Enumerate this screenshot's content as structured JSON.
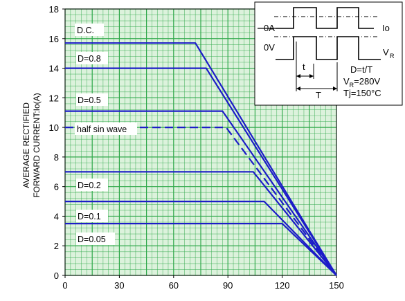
{
  "chart_data": {
    "type": "line",
    "title": "",
    "xlabel": "",
    "ylabel_lines": [
      "AVERAGE RECTIFIED",
      "FORWARD CURRENT:Io(A)"
    ],
    "xlim": [
      0,
      150
    ],
    "ylim": [
      0,
      18
    ],
    "xticks": [
      0,
      30,
      60,
      90,
      120,
      150
    ],
    "yticks": [
      0,
      2,
      4,
      6,
      8,
      10,
      12,
      14,
      16,
      18
    ],
    "grid": true,
    "colors": {
      "series": "#1c1cc8",
      "grid": "#2fa84a",
      "background": "#dcf2dc"
    },
    "series": [
      {
        "name": "D.C.",
        "style": "solid",
        "points": [
          [
            0,
            15.7
          ],
          [
            72,
            15.7
          ],
          [
            150,
            0
          ]
        ]
      },
      {
        "name": "D=0.8",
        "style": "solid",
        "points": [
          [
            0,
            14.0
          ],
          [
            78,
            14.0
          ],
          [
            150,
            0
          ]
        ]
      },
      {
        "name": "D=0.5",
        "style": "solid",
        "points": [
          [
            0,
            11.1
          ],
          [
            87,
            11.1
          ],
          [
            150,
            0
          ]
        ]
      },
      {
        "name": "half sin wave",
        "style": "dashed",
        "points": [
          [
            0,
            10.0
          ],
          [
            89,
            10.0
          ],
          [
            150,
            0
          ]
        ]
      },
      {
        "name": "D=0.2",
        "style": "solid",
        "points": [
          [
            0,
            7.0
          ],
          [
            104,
            7.0
          ],
          [
            150,
            0
          ]
        ]
      },
      {
        "name": "D=0.1",
        "style": "solid",
        "points": [
          [
            0,
            5.0
          ],
          [
            110,
            5.0
          ],
          [
            150,
            0
          ]
        ]
      },
      {
        "name": "D=0.05",
        "style": "solid",
        "points": [
          [
            0,
            3.5
          ],
          [
            120,
            3.5
          ],
          [
            150,
            0
          ]
        ]
      }
    ]
  },
  "inset": {
    "label_0A": "0A",
    "label_0V": "0V",
    "label_Io": "Io",
    "label_VR": "V",
    "label_VR_sub": "R",
    "label_t": "t",
    "label_T": "T",
    "eq_D": "D=t/T",
    "eq_VR_pre": "V",
    "eq_VR_sub": "R",
    "eq_VR_val": "=280V",
    "eq_Tj": "Tj=150°C"
  }
}
